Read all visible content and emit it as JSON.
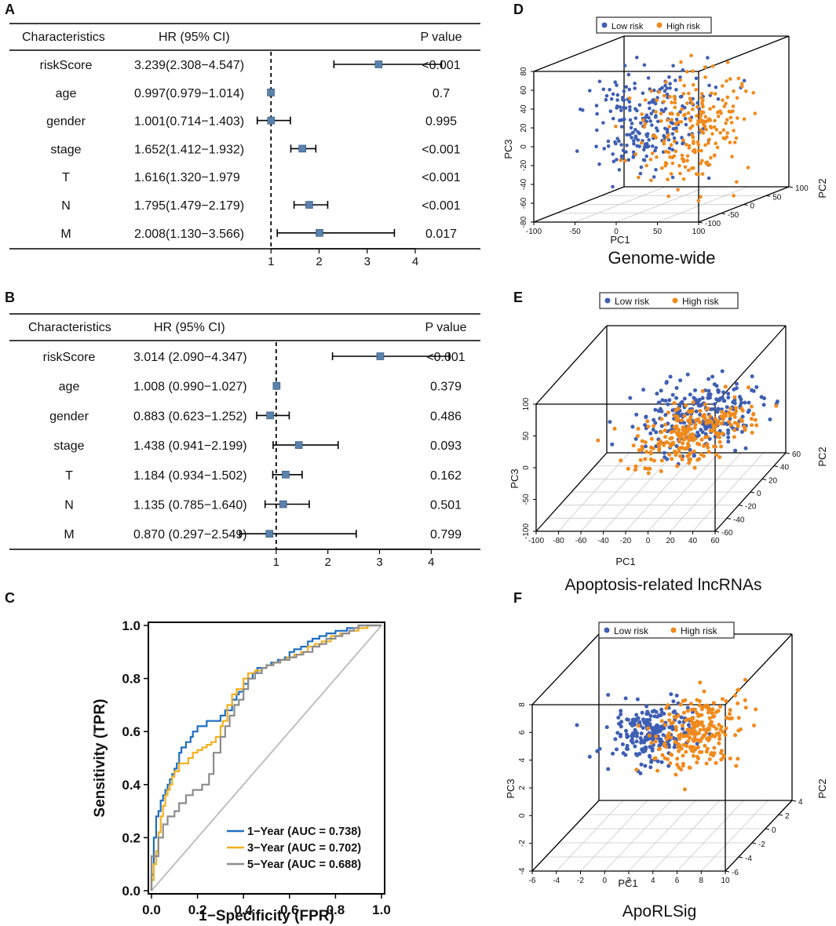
{
  "figure": {
    "panel_labels": [
      "A",
      "B",
      "C",
      "D",
      "E",
      "F"
    ]
  },
  "chart_data": [
    {
      "type": "forest",
      "panel": "A",
      "headers": {
        "characteristics": "Characteristics",
        "hr": "HR (95% CI)",
        "p": "P value"
      },
      "rows": [
        {
          "name": "riskScore",
          "hr_text": "3.239(2.308−4.547)",
          "hr": 3.239,
          "lo": 2.308,
          "hi": 4.547,
          "p": "<0.001"
        },
        {
          "name": "age",
          "hr_text": "0.997(0.979−1.014)",
          "hr": 0.997,
          "lo": 0.979,
          "hi": 1.014,
          "p": "0.7"
        },
        {
          "name": "gender",
          "hr_text": "1.001(0.714−1.403)",
          "hr": 1.001,
          "lo": 0.714,
          "hi": 1.403,
          "p": "0.995"
        },
        {
          "name": "stage",
          "hr_text": "1.652(1.412−1.932)",
          "hr": 1.652,
          "lo": 1.412,
          "hi": 1.932,
          "p": "<0.001"
        },
        {
          "name": "T",
          "hr_text": "1.616(1.320−1.979",
          "hr": 1.616,
          "lo": 1.32,
          "hi": 1.979,
          "p": "<0.001",
          "show_mark": false
        },
        {
          "name": "N",
          "hr_text": "1.795(1.479−2.179)",
          "hr": 1.795,
          "lo": 1.479,
          "hi": 2.179,
          "p": "<0.001"
        },
        {
          "name": "M",
          "hr_text": "2.008(1.130−3.566)",
          "hr": 2.008,
          "lo": 1.13,
          "hi": 3.566,
          "p": "0.017"
        }
      ],
      "xticks": [
        1,
        2,
        3,
        4
      ],
      "xlim": [
        0.0,
        4.8
      ],
      "ref_line": 1,
      "marker_color": "#5a82ad"
    },
    {
      "type": "forest",
      "panel": "B",
      "headers": {
        "characteristics": "Characteristics",
        "hr": "HR (95% CI)",
        "p": "P value"
      },
      "rows": [
        {
          "name": "riskScore",
          "hr_text": "3.014 (2.090−4.347)",
          "hr": 3.014,
          "lo": 2.09,
          "hi": 4.347,
          "p": "<0.001"
        },
        {
          "name": "age",
          "hr_text": "1.008 (0.990−1.027)",
          "hr": 1.008,
          "lo": 0.99,
          "hi": 1.027,
          "p": "0.379"
        },
        {
          "name": "gender",
          "hr_text": "0.883 (0.623−1.252)",
          "hr": 0.883,
          "lo": 0.623,
          "hi": 1.252,
          "p": "0.486"
        },
        {
          "name": "stage",
          "hr_text": "1.438 (0.941−2.199)",
          "hr": 1.438,
          "lo": 0.941,
          "hi": 2.199,
          "p": "0.093"
        },
        {
          "name": "T",
          "hr_text": "1.184 (0.934−1.502)",
          "hr": 1.184,
          "lo": 0.934,
          "hi": 1.502,
          "p": "0.162"
        },
        {
          "name": "N",
          "hr_text": "1.135 (0.785−1.640)",
          "hr": 1.135,
          "lo": 0.785,
          "hi": 1.64,
          "p": "0.501"
        },
        {
          "name": "M",
          "hr_text": "0.870 (0.297−2.549)",
          "hr": 0.87,
          "lo": 0.297,
          "hi": 2.549,
          "p": "0.799"
        }
      ],
      "xticks": [
        1,
        2,
        3,
        4
      ],
      "xlim": [
        0.0,
        4.8
      ],
      "ref_line": 1,
      "marker_color": "#5a82ad"
    },
    {
      "type": "line",
      "panel": "C",
      "title": "",
      "xlabel": "1−Specificity (FPR)",
      "ylabel": "Sensitivity (TPR)",
      "xlim": [
        0,
        1
      ],
      "ylim": [
        0,
        1
      ],
      "xticks": [
        "0.0",
        "0.2",
        "0.4",
        "0.6",
        "0.8",
        "1.0"
      ],
      "yticks": [
        "0.0",
        "0.2",
        "0.4",
        "0.6",
        "0.8",
        "1.0"
      ],
      "diagonal_color": "#bfbfbf",
      "series": [
        {
          "name": "1−Year (AUC = 0.738)",
          "color": "#1f6fc0",
          "x": [
            0,
            0,
            0.01,
            0.01,
            0.02,
            0.02,
            0.03,
            0.04,
            0.05,
            0.06,
            0.07,
            0.08,
            0.09,
            0.1,
            0.11,
            0.12,
            0.13,
            0.15,
            0.17,
            0.18,
            0.2,
            0.22,
            0.24,
            0.25,
            0.26,
            0.28,
            0.3,
            0.32,
            0.34,
            0.35,
            0.37,
            0.38,
            0.4,
            0.42,
            0.44,
            0.46,
            0.48,
            0.5,
            0.52,
            0.55,
            0.58,
            0.6,
            0.62,
            0.65,
            0.68,
            0.7,
            0.73,
            0.76,
            0.8,
            0.85,
            0.88,
            0.9,
            0.93,
            0.95,
            1.0
          ],
          "y": [
            0,
            0.06,
            0.1,
            0.2,
            0.24,
            0.28,
            0.3,
            0.34,
            0.36,
            0.38,
            0.4,
            0.42,
            0.44,
            0.46,
            0.48,
            0.52,
            0.54,
            0.56,
            0.58,
            0.6,
            0.62,
            0.62,
            0.64,
            0.64,
            0.64,
            0.64,
            0.66,
            0.68,
            0.68,
            0.72,
            0.74,
            0.75,
            0.78,
            0.8,
            0.82,
            0.84,
            0.84,
            0.85,
            0.86,
            0.87,
            0.88,
            0.9,
            0.91,
            0.92,
            0.94,
            0.95,
            0.96,
            0.97,
            0.98,
            0.99,
            0.99,
            1.0,
            1.0,
            1.0,
            1.0
          ]
        },
        {
          "name": "3−Year (AUC = 0.702)",
          "color": "#f2b01e",
          "x": [
            0,
            0,
            0.01,
            0.02,
            0.03,
            0.04,
            0.05,
            0.06,
            0.07,
            0.08,
            0.09,
            0.1,
            0.12,
            0.14,
            0.16,
            0.18,
            0.2,
            0.22,
            0.24,
            0.26,
            0.28,
            0.3,
            0.31,
            0.33,
            0.35,
            0.37,
            0.4,
            0.42,
            0.45,
            0.48,
            0.5,
            0.53,
            0.56,
            0.59,
            0.62,
            0.65,
            0.68,
            0.71,
            0.74,
            0.78,
            0.82,
            0.86,
            0.9,
            0.94,
            1.0
          ],
          "y": [
            0,
            0.04,
            0.1,
            0.15,
            0.22,
            0.28,
            0.32,
            0.36,
            0.38,
            0.4,
            0.43,
            0.45,
            0.48,
            0.48,
            0.5,
            0.52,
            0.53,
            0.54,
            0.55,
            0.56,
            0.58,
            0.62,
            0.64,
            0.7,
            0.74,
            0.76,
            0.8,
            0.82,
            0.83,
            0.84,
            0.85,
            0.86,
            0.87,
            0.88,
            0.89,
            0.9,
            0.92,
            0.93,
            0.94,
            0.96,
            0.97,
            0.98,
            0.99,
            1.0,
            1.0
          ]
        },
        {
          "name": "5−Year (AUC = 0.688)",
          "color": "#8c8c8c",
          "x": [
            0,
            0,
            0.02,
            0.03,
            0.05,
            0.07,
            0.1,
            0.12,
            0.15,
            0.18,
            0.2,
            0.22,
            0.25,
            0.27,
            0.3,
            0.32,
            0.34,
            0.36,
            0.38,
            0.4,
            0.42,
            0.45,
            0.48,
            0.5,
            0.53,
            0.56,
            0.6,
            0.63,
            0.66,
            0.7,
            0.73,
            0.76,
            0.8,
            0.83,
            0.86,
            0.88,
            0.9,
            0.94,
            1.0
          ],
          "y": [
            0,
            0.13,
            0.13,
            0.2,
            0.25,
            0.28,
            0.3,
            0.33,
            0.36,
            0.38,
            0.38,
            0.4,
            0.44,
            0.52,
            0.58,
            0.62,
            0.66,
            0.7,
            0.72,
            0.76,
            0.8,
            0.82,
            0.84,
            0.85,
            0.86,
            0.87,
            0.88,
            0.89,
            0.9,
            0.92,
            0.93,
            0.95,
            0.96,
            0.97,
            0.98,
            0.99,
            1.0,
            1.0,
            1.0
          ]
        }
      ]
    },
    {
      "type": "scatter",
      "panel": "D",
      "projection": "3d",
      "caption": "Genome-wide",
      "legend": [
        {
          "label": "Low risk",
          "color": "#3f5fb3"
        },
        {
          "label": "High risk",
          "color": "#f08a1c"
        }
      ],
      "xlabel": "PC1",
      "ylabel": "PC2",
      "zlabel": "PC3",
      "xlim": [
        -100,
        100
      ],
      "ylim": [
        -100,
        100
      ],
      "zlim": [
        -80,
        80
      ],
      "xticks": [
        -100,
        -50,
        0,
        50,
        100
      ],
      "yticks": [
        -100,
        -50,
        0,
        50,
        100
      ],
      "zticks": [
        -80,
        -60,
        -40,
        -20,
        0,
        20,
        40,
        60,
        80
      ],
      "clusters": [
        {
          "series": "Low risk",
          "n": 240,
          "cx": -15,
          "cy": 5,
          "cz": 10,
          "sx": 30,
          "sy": 40,
          "sz": 28,
          "seed": 11
        },
        {
          "series": "High risk",
          "n": 240,
          "cx": 40,
          "cy": -10,
          "cz": 5,
          "sx": 28,
          "sy": 40,
          "sz": 30,
          "seed": 23
        }
      ]
    },
    {
      "type": "scatter",
      "panel": "E",
      "projection": "3d",
      "caption": "Apoptosis-related lncRNAs",
      "legend": [
        {
          "label": "Low risk",
          "color": "#3f5fb3"
        },
        {
          "label": "High risk",
          "color": "#f08a1c"
        }
      ],
      "xlabel": "PC1",
      "ylabel": "PC2",
      "zlabel": "PC3",
      "xlim": [
        -100,
        60
      ],
      "ylim": [
        -60,
        60
      ],
      "zlim": [
        -100,
        100
      ],
      "xticks": [
        -100,
        -80,
        -60,
        -40,
        -20,
        0,
        20,
        40,
        60
      ],
      "yticks": [
        -60,
        -40,
        -20,
        0,
        20,
        40,
        60
      ],
      "zticks": [
        -100,
        -50,
        0,
        50,
        100
      ],
      "clusters": [
        {
          "series": "Low risk",
          "n": 260,
          "cx": 5,
          "cy": 15,
          "cz": 5,
          "sx": 25,
          "sy": 25,
          "sz": 18,
          "seed": 31
        },
        {
          "series": "High risk",
          "n": 260,
          "cx": 10,
          "cy": -5,
          "cz": -5,
          "sx": 25,
          "sy": 25,
          "sz": 8,
          "seed": 47
        }
      ]
    },
    {
      "type": "scatter",
      "panel": "F",
      "projection": "3d",
      "caption": "ApoRLSig",
      "legend": [
        {
          "label": "Low risk",
          "color": "#3f5fb3"
        },
        {
          "label": "High risk",
          "color": "#f08a1c"
        }
      ],
      "xlabel": "PC1",
      "ylabel": "PC2",
      "zlabel": "PC3",
      "xlim": [
        -6,
        10
      ],
      "ylim": [
        -6,
        4
      ],
      "zlim": [
        -4,
        8
      ],
      "xticks": [
        -6,
        -4,
        -2,
        0,
        2,
        4,
        6,
        8,
        10
      ],
      "yticks": [
        -6,
        -4,
        -2,
        0,
        2,
        4
      ],
      "zticks": [
        -4,
        -2,
        0,
        2,
        4,
        6,
        8
      ],
      "clusters": [
        {
          "series": "Low risk",
          "n": 240,
          "cx": 0.5,
          "cy": 0,
          "cz": 3.0,
          "sx": 1.8,
          "sy": 1.3,
          "sz": 0.9,
          "seed": 53
        },
        {
          "series": "High risk",
          "n": 240,
          "cx": 4.0,
          "cy": 0,
          "cz": 2.8,
          "sx": 1.5,
          "sy": 1.3,
          "sz": 1.1,
          "seed": 67
        }
      ]
    }
  ]
}
